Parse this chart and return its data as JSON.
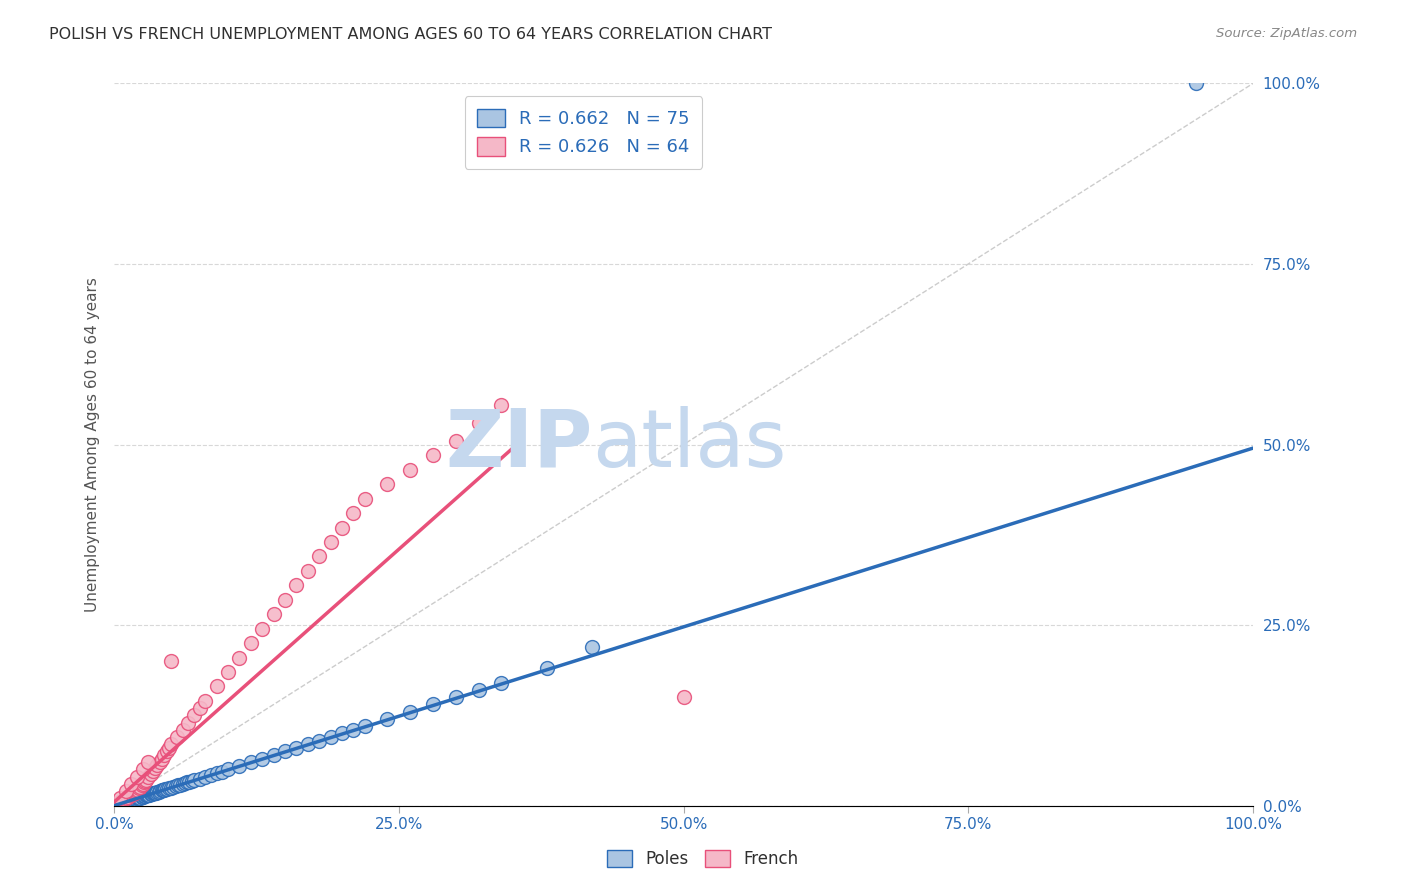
{
  "title": "POLISH VS FRENCH UNEMPLOYMENT AMONG AGES 60 TO 64 YEARS CORRELATION CHART",
  "source": "Source: ZipAtlas.com",
  "ylabel": "Unemployment Among Ages 60 to 64 years",
  "x_tick_labels": [
    "0.0%",
    "25.0%",
    "50.0%",
    "75.0%",
    "100.0%"
  ],
  "y_tick_labels_right": [
    "0.0%",
    "25.0%",
    "50.0%",
    "75.0%",
    "100.0%"
  ],
  "xlim": [
    0.0,
    1.0
  ],
  "ylim": [
    0.0,
    1.0
  ],
  "poles_R": 0.662,
  "poles_N": 75,
  "french_R": 0.626,
  "french_N": 64,
  "poles_color": "#aac5e2",
  "poles_line_color": "#2b6cb8",
  "french_color": "#f5b8c8",
  "french_line_color": "#e8507a",
  "diag_line_color": "#cccccc",
  "background_color": "#ffffff",
  "grid_color": "#d8d8d8",
  "title_color": "#303030",
  "label_color": "#2b6cb8",
  "poles_scatter_x": [
    0.005,
    0.008,
    0.01,
    0.012,
    0.014,
    0.015,
    0.016,
    0.017,
    0.018,
    0.019,
    0.02,
    0.021,
    0.022,
    0.023,
    0.024,
    0.025,
    0.026,
    0.027,
    0.028,
    0.029,
    0.03,
    0.031,
    0.032,
    0.033,
    0.034,
    0.035,
    0.036,
    0.037,
    0.038,
    0.039,
    0.04,
    0.042,
    0.043,
    0.044,
    0.045,
    0.046,
    0.048,
    0.05,
    0.052,
    0.054,
    0.056,
    0.058,
    0.06,
    0.062,
    0.064,
    0.066,
    0.068,
    0.07,
    0.075,
    0.08,
    0.085,
    0.09,
    0.095,
    0.1,
    0.11,
    0.12,
    0.13,
    0.14,
    0.15,
    0.16,
    0.17,
    0.18,
    0.19,
    0.2,
    0.21,
    0.22,
    0.24,
    0.26,
    0.28,
    0.3,
    0.32,
    0.34,
    0.38,
    0.42,
    0.95
  ],
  "poles_scatter_y": [
    0.005,
    0.005,
    0.006,
    0.006,
    0.007,
    0.007,
    0.008,
    0.008,
    0.009,
    0.009,
    0.01,
    0.01,
    0.011,
    0.011,
    0.012,
    0.012,
    0.013,
    0.013,
    0.014,
    0.014,
    0.015,
    0.015,
    0.016,
    0.016,
    0.017,
    0.017,
    0.018,
    0.018,
    0.019,
    0.019,
    0.02,
    0.021,
    0.022,
    0.022,
    0.023,
    0.023,
    0.024,
    0.025,
    0.026,
    0.027,
    0.028,
    0.029,
    0.03,
    0.031,
    0.032,
    0.033,
    0.034,
    0.035,
    0.037,
    0.04,
    0.042,
    0.045,
    0.047,
    0.05,
    0.055,
    0.06,
    0.065,
    0.07,
    0.075,
    0.08,
    0.085,
    0.09,
    0.095,
    0.1,
    0.105,
    0.11,
    0.12,
    0.13,
    0.14,
    0.15,
    0.16,
    0.17,
    0.19,
    0.22,
    1.0
  ],
  "french_scatter_x": [
    0.005,
    0.008,
    0.01,
    0.012,
    0.014,
    0.015,
    0.016,
    0.017,
    0.018,
    0.019,
    0.02,
    0.021,
    0.022,
    0.023,
    0.024,
    0.025,
    0.026,
    0.027,
    0.028,
    0.03,
    0.032,
    0.034,
    0.036,
    0.038,
    0.04,
    0.042,
    0.044,
    0.046,
    0.048,
    0.05,
    0.055,
    0.06,
    0.065,
    0.07,
    0.075,
    0.08,
    0.09,
    0.1,
    0.11,
    0.12,
    0.13,
    0.14,
    0.15,
    0.16,
    0.17,
    0.18,
    0.19,
    0.2,
    0.21,
    0.22,
    0.24,
    0.26,
    0.28,
    0.3,
    0.32,
    0.34,
    0.005,
    0.01,
    0.015,
    0.02,
    0.025,
    0.03,
    0.05,
    0.5
  ],
  "french_scatter_y": [
    0.005,
    0.008,
    0.01,
    0.012,
    0.014,
    0.015,
    0.016,
    0.017,
    0.018,
    0.019,
    0.02,
    0.022,
    0.024,
    0.026,
    0.028,
    0.03,
    0.032,
    0.034,
    0.036,
    0.04,
    0.044,
    0.048,
    0.052,
    0.056,
    0.06,
    0.065,
    0.07,
    0.075,
    0.08,
    0.085,
    0.095,
    0.105,
    0.115,
    0.125,
    0.135,
    0.145,
    0.165,
    0.185,
    0.205,
    0.225,
    0.245,
    0.265,
    0.285,
    0.305,
    0.325,
    0.345,
    0.365,
    0.385,
    0.405,
    0.425,
    0.445,
    0.465,
    0.485,
    0.505,
    0.53,
    0.555,
    0.01,
    0.02,
    0.03,
    0.04,
    0.05,
    0.06,
    0.2,
    0.15
  ],
  "poles_line_x": [
    0.0,
    1.0
  ],
  "poles_line_y": [
    0.0,
    0.495
  ],
  "french_line_x": [
    0.0,
    0.35
  ],
  "french_line_y": [
    0.005,
    0.495
  ],
  "watermark_top": "ZIP",
  "watermark_bot": "atlas",
  "watermark_color": "#c5d8ee",
  "marker_size": 100,
  "marker_linewidth": 1.0
}
